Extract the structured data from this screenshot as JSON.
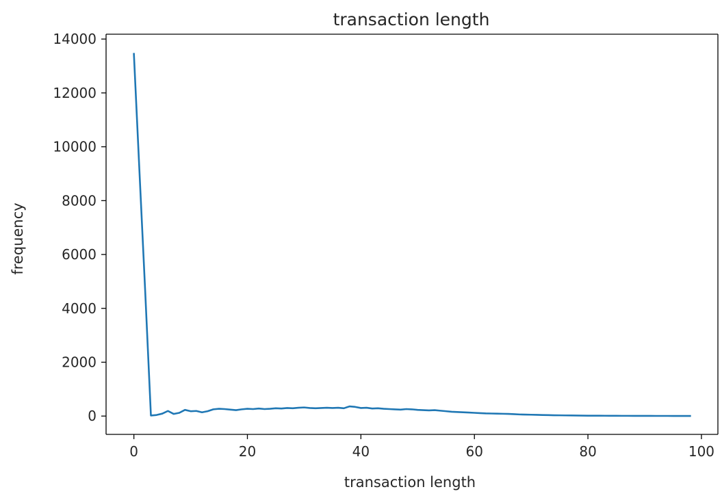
{
  "chart_data": {
    "type": "line",
    "title": "transaction length",
    "xlabel": "transaction length",
    "ylabel": "frequency",
    "xlim": [
      -4.9,
      102.9
    ],
    "ylim": [
      -680,
      14180
    ],
    "x_ticks": [
      0,
      20,
      40,
      60,
      80,
      100
    ],
    "y_ticks": [
      0,
      2000,
      4000,
      6000,
      8000,
      10000,
      12000,
      14000
    ],
    "grid": false,
    "line_color": "#1f77b4",
    "series": [
      {
        "x": [
          0,
          1,
          2,
          3,
          4,
          5,
          6,
          7,
          8,
          9,
          10,
          11,
          12,
          13,
          14,
          15,
          16,
          17,
          18,
          19,
          20,
          21,
          22,
          23,
          24,
          25,
          26,
          27,
          28,
          29,
          30,
          31,
          32,
          33,
          34,
          35,
          36,
          37,
          38,
          39,
          40,
          41,
          42,
          43,
          44,
          45,
          46,
          47,
          48,
          49,
          50,
          51,
          52,
          53,
          54,
          55,
          56,
          57,
          58,
          59,
          60,
          61,
          62,
          63,
          64,
          65,
          66,
          67,
          68,
          69,
          70,
          71,
          72,
          73,
          74,
          75,
          76,
          77,
          78,
          79,
          80,
          81,
          82,
          83,
          84,
          85,
          86,
          87,
          88,
          89,
          90,
          91,
          92,
          93,
          94,
          95,
          96,
          97,
          98
        ],
        "values": [
          13450,
          9000,
          4600,
          20,
          40,
          90,
          190,
          80,
          120,
          230,
          180,
          190,
          140,
          180,
          250,
          270,
          260,
          240,
          220,
          250,
          270,
          260,
          280,
          260,
          270,
          290,
          280,
          300,
          290,
          310,
          320,
          300,
          290,
          300,
          310,
          300,
          310,
          290,
          360,
          340,
          300,
          310,
          280,
          290,
          270,
          260,
          250,
          240,
          260,
          250,
          230,
          220,
          210,
          220,
          200,
          180,
          160,
          150,
          140,
          130,
          120,
          110,
          100,
          95,
          90,
          85,
          80,
          70,
          60,
          55,
          50,
          45,
          40,
          35,
          30,
          28,
          25,
          22,
          20,
          18,
          15,
          14,
          13,
          12,
          11,
          10,
          9,
          9,
          8,
          8,
          7,
          7,
          6,
          6,
          6,
          5,
          5,
          5,
          5
        ]
      }
    ]
  }
}
